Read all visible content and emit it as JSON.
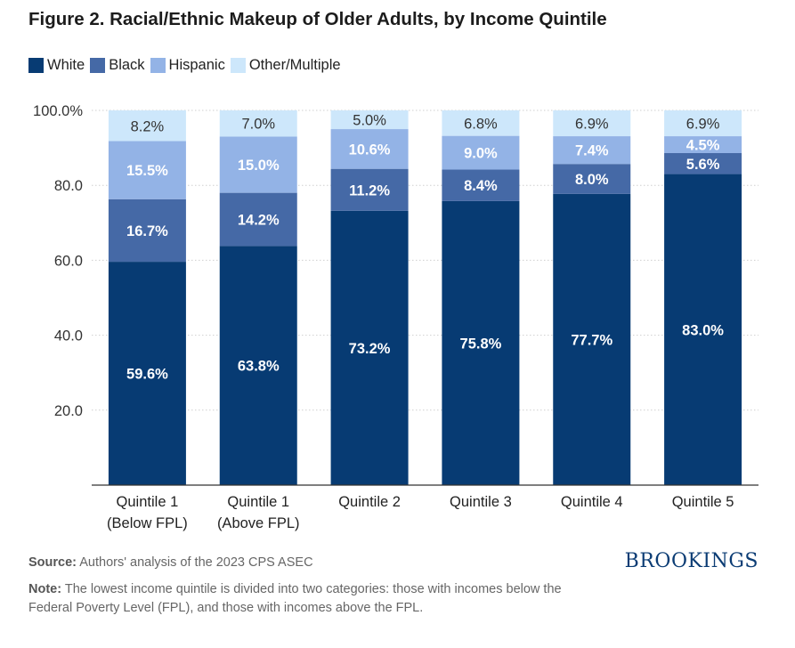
{
  "title": "Figure 2. Racial/Ethnic Makeup of Older Adults, by Income Quintile",
  "source_label": "Source:",
  "source_text": "Authors' analysis of the 2023 CPS ASEC",
  "note_label": "Note:",
  "note_text": "The lowest income quintile is divided into two categories: those with incomes below the Federal Poverty Level (FPL), and those with incomes above the FPL.",
  "brand": "BROOKINGS",
  "chart_data": {
    "type": "bar",
    "stacked": true,
    "title": "Figure 2. Racial/Ethnic Makeup of Older Adults, by Income Quintile",
    "xlabel": "",
    "ylabel": "",
    "ylim": [
      0,
      100
    ],
    "yticks": [
      "20.0",
      "40.0",
      "60.0",
      "80.0",
      "100.0%"
    ],
    "ytick_values": [
      20,
      40,
      60,
      80,
      100
    ],
    "grid": true,
    "legend_position": "top-left",
    "categories": [
      [
        "Quintile 1",
        "(Below FPL)"
      ],
      [
        "Quintile 1",
        "(Above FPL)"
      ],
      [
        "Quintile 2"
      ],
      [
        "Quintile 3"
      ],
      [
        "Quintile 4"
      ],
      [
        "Quintile 5"
      ]
    ],
    "series": [
      {
        "name": "White",
        "color": "#073b73",
        "label_color": "#ffffff",
        "values": [
          59.6,
          63.8,
          73.2,
          75.8,
          77.7,
          83.0
        ],
        "labels": [
          "59.6%",
          "63.8%",
          "73.2%",
          "75.8%",
          "77.7%",
          "83.0%"
        ]
      },
      {
        "name": "Black",
        "color": "#4569a6",
        "label_color": "#ffffff",
        "values": [
          16.7,
          14.2,
          11.2,
          8.4,
          8.0,
          5.6
        ],
        "labels": [
          "16.7%",
          "14.2%",
          "11.2%",
          "8.4%",
          "8.0%",
          "5.6%"
        ]
      },
      {
        "name": "Hispanic",
        "color": "#93b3e6",
        "label_color": "#ffffff",
        "values": [
          15.5,
          15.0,
          10.6,
          9.0,
          7.4,
          4.5
        ],
        "labels": [
          "15.5%",
          "15.0%",
          "10.6%",
          "9.0%",
          "7.4%",
          "4.5%"
        ]
      },
      {
        "name": "Other/Multiple",
        "color": "#cde7fb",
        "label_color": "#333333",
        "values": [
          8.2,
          7.0,
          5.0,
          6.8,
          6.9,
          6.9
        ],
        "labels": [
          "8.2%",
          "7.0%",
          "5.0%",
          "6.8%",
          "6.9%",
          "6.9%"
        ]
      }
    ]
  }
}
